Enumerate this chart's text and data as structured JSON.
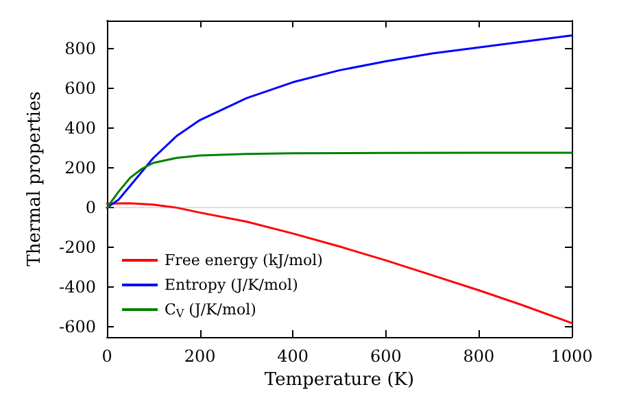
{
  "chart_data": {
    "type": "line",
    "xlabel": "Temperature (K)",
    "ylabel": "Thermal properties",
    "xlim": [
      0,
      1000
    ],
    "xticks": [
      0,
      200,
      400,
      600,
      800,
      1000
    ],
    "ylim": [
      -650,
      940
    ],
    "yticks": [
      -600,
      -400,
      -200,
      0,
      200,
      400,
      600,
      800
    ],
    "grid": false,
    "legend": "bottom left",
    "marker": "none",
    "line_style": "solid",
    "ref_lines": [
      {
        "axis": "y",
        "value": 0,
        "color": "#808080",
        "line_style": "dotted"
      }
    ],
    "series": [
      {
        "name": "Free energy (kJ/mol)",
        "color": "#ff0000",
        "x": [
          0,
          50,
          100,
          150,
          200,
          300,
          400,
          500,
          600,
          700,
          800,
          900,
          1000
        ],
        "values": [
          20,
          22,
          15,
          0,
          -25,
          -70,
          -130,
          -195,
          -265,
          -340,
          -415,
          -495,
          -580
        ]
      },
      {
        "name": "Entropy (J/K/mol)",
        "color": "#0000ff",
        "x": [
          0,
          25,
          50,
          75,
          100,
          150,
          200,
          300,
          400,
          500,
          600,
          700,
          800,
          900,
          1000
        ],
        "values": [
          0,
          40,
          110,
          180,
          250,
          360,
          440,
          550,
          630,
          690,
          735,
          775,
          805,
          835,
          865
        ]
      },
      {
        "name": "C$_{V}$ (J/K/mol)",
        "color": "#008000",
        "x": [
          0,
          25,
          50,
          75,
          100,
          150,
          200,
          300,
          400,
          600,
          800,
          1000
        ],
        "values": [
          0,
          80,
          150,
          195,
          225,
          250,
          262,
          270,
          273,
          275,
          276,
          276
        ]
      }
    ]
  }
}
